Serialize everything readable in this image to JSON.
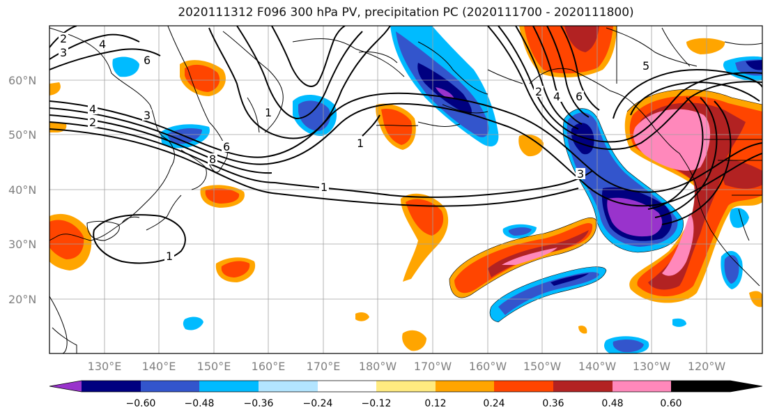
{
  "title": "2020111312 F096 300 hPa PV, precipitation PC (2020111700 - 2020111800)",
  "lat_labels": [
    "60°N",
    "50°N",
    "40°N",
    "30°N",
    "20°N"
  ],
  "lon_labels": [
    "130°E",
    "140°E",
    "150°E",
    "160°E",
    "170°E",
    "180°W",
    "170°W",
    "160°W",
    "150°W",
    "140°W",
    "130°W",
    "120°W"
  ],
  "colorbar": {
    "tick_labels": [
      "−0.60",
      "−0.48",
      "−0.36",
      "−0.24",
      "−0.12",
      "0.12",
      "0.24",
      "0.36",
      "0.48",
      "0.60"
    ],
    "colors": [
      "#9933cc",
      "#000080",
      "#3355cc",
      "#00bbff",
      "#b3e5ff",
      "#ffffff",
      "#ffeb80",
      "#ffa500",
      "#ff4500",
      "#b22222",
      "#ff88bb"
    ]
  },
  "contour_labels": {
    "pv_2_west": "2",
    "pv_3_west": "3",
    "pv_4_west": "4",
    "pv_6_kamchatka": "6",
    "pv_4_japan": "4",
    "pv_2_japan": "2",
    "pv_3_japan": "3",
    "pv_6_japan": "6",
    "pv_8_japan": "8",
    "pv_1_west": "1",
    "pv_1_dateline": "1",
    "pv_1_pacific": "1",
    "pv_2_alaska": "2",
    "pv_4_alaska": "4",
    "pv_6_alaska": "6",
    "pv_3_gulf": "3",
    "pv_5_canada": "5",
    "pv_1_south": "1"
  }
}
